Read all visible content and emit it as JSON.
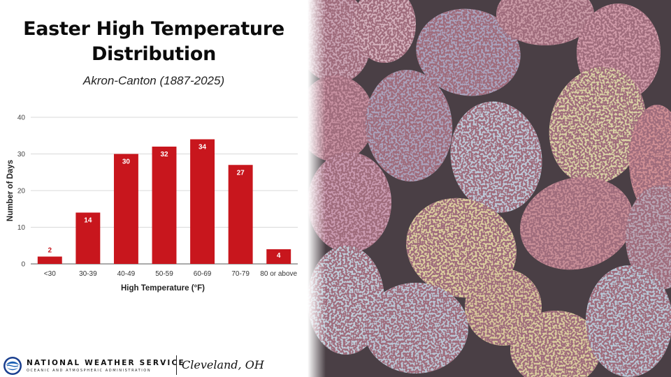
{
  "header": {
    "title_line1": "Easter High Temperature",
    "title_line2": "Distribution",
    "subtitle": "Akron-Canton (1887-2025)"
  },
  "chart_data": {
    "type": "bar",
    "categories": [
      "<30",
      "30-39",
      "40-49",
      "50-59",
      "60-69",
      "70-79",
      "80 or above"
    ],
    "values": [
      2,
      14,
      30,
      32,
      34,
      27,
      4
    ],
    "xlabel": "High Temperature (°F)",
    "ylabel": "Number of Days",
    "ylim": [
      0,
      40
    ],
    "yticks": [
      0,
      10,
      20,
      30,
      40
    ],
    "grid": true,
    "legend": "none",
    "bar_color": "#c8161d"
  },
  "footer": {
    "agency_name": "NATIONAL WEATHER SERVICE",
    "agency_sub": "OCEANIC AND ATMOSPHERIC ADMINISTRATION",
    "office": "Cleveland, OH"
  },
  "photo": {
    "subject": "speckled-easter-eggs",
    "colors": [
      "#c9a3b3",
      "#a9a3bd",
      "#d9d0a3",
      "#b8c8d6",
      "#cf9aa0"
    ]
  }
}
